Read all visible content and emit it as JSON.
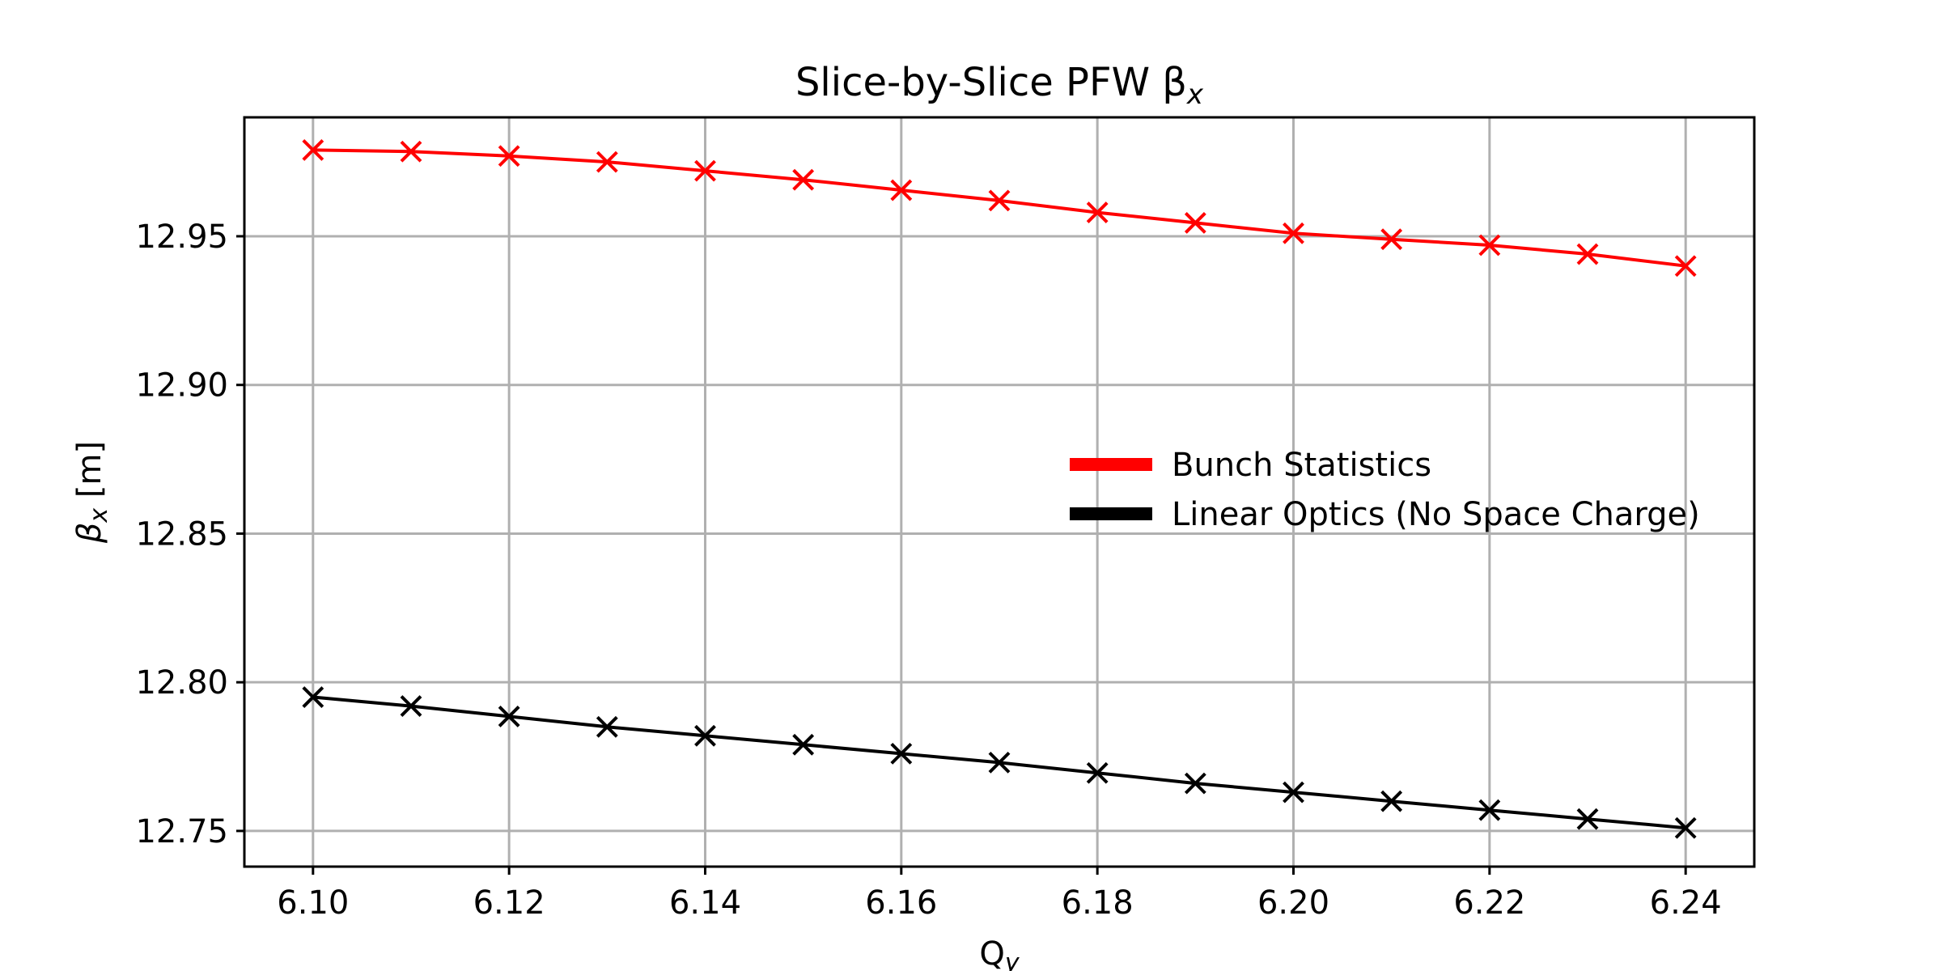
{
  "chart_data": {
    "type": "line",
    "title": "Slice-by-Slice PFW β",
    "title_sub": "x",
    "xlabel": "Q",
    "xlabel_sub": "y",
    "ylabel": "β",
    "ylabel_sub": "x",
    "ylabel_unit": " [m]",
    "xlim": [
      6.093,
      6.247
    ],
    "ylim": [
      12.738,
      12.99
    ],
    "xticks": [
      "6.10",
      "6.12",
      "6.14",
      "6.16",
      "6.18",
      "6.20",
      "6.22",
      "6.24"
    ],
    "yticks": [
      "12.75",
      "12.80",
      "12.85",
      "12.90",
      "12.95"
    ],
    "grid": true,
    "legend_position": "center-right",
    "x": [
      6.1,
      6.11,
      6.12,
      6.13,
      6.14,
      6.15,
      6.16,
      6.17,
      6.18,
      6.19,
      6.2,
      6.21,
      6.22,
      6.23,
      6.24
    ],
    "series": [
      {
        "name": "Bunch Statistics",
        "color": "#ff0000",
        "marker": "x",
        "values": [
          12.979,
          12.9785,
          12.977,
          12.975,
          12.972,
          12.969,
          12.9655,
          12.962,
          12.958,
          12.9545,
          12.951,
          12.949,
          12.947,
          12.944,
          12.94
        ]
      },
      {
        "name": "Linear Optics (No Space Charge)",
        "color": "#000000",
        "marker": "x",
        "values": [
          12.795,
          12.792,
          12.7885,
          12.785,
          12.782,
          12.779,
          12.776,
          12.773,
          12.7695,
          12.766,
          12.763,
          12.76,
          12.757,
          12.754,
          12.751
        ]
      }
    ]
  }
}
